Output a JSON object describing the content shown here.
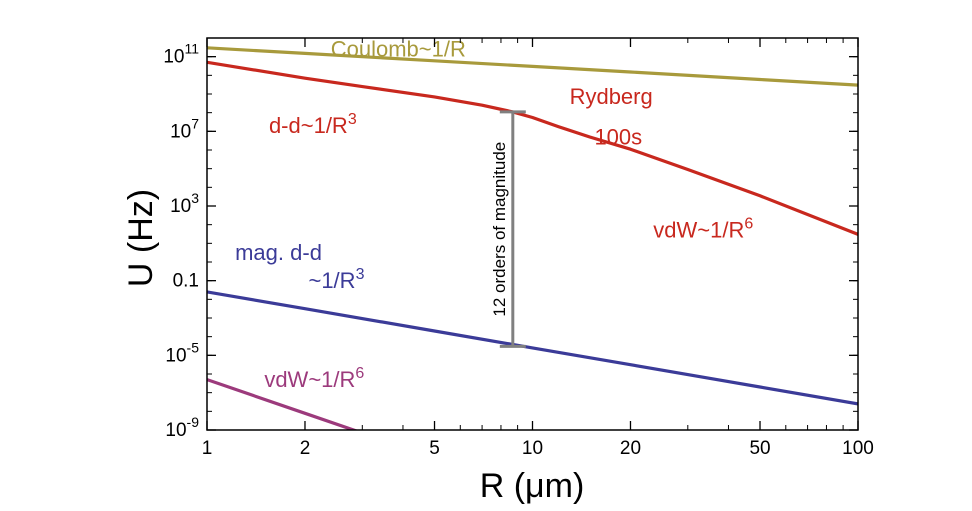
{
  "chart_data": {
    "type": "line",
    "xlabel": "R (μm)",
    "ylabel": "U (Hz)",
    "xscale": "log",
    "yscale": "log",
    "xlim": [
      1,
      100
    ],
    "ylim": [
      1e-09,
      1000000000000.0
    ],
    "x_ticks": [
      {
        "value": 1,
        "label": "1"
      },
      {
        "value": 2,
        "label": "2"
      },
      {
        "value": 5,
        "label": "5"
      },
      {
        "value": 10,
        "label": "10"
      },
      {
        "value": 20,
        "label": "20"
      },
      {
        "value": 50,
        "label": "50"
      },
      {
        "value": 100,
        "label": "100"
      }
    ],
    "y_ticks": [
      {
        "value": 1e-09,
        "base": "10",
        "exp": "-9"
      },
      {
        "value": 1e-05,
        "base": "10",
        "exp": "-5"
      },
      {
        "value": 0.1,
        "base": "0.1",
        "exp": ""
      },
      {
        "value": 1000.0,
        "base": "10",
        "exp": "3"
      },
      {
        "value": 10000000.0,
        "base": "10",
        "exp": "7"
      },
      {
        "value": 100000000000.0,
        "base": "10",
        "exp": "11"
      }
    ],
    "grid": false,
    "legend": "none",
    "series": [
      {
        "key": "coulomb",
        "color": "#a89a3c",
        "x": [
          1,
          2,
          5,
          10,
          20,
          50,
          100
        ],
        "y": [
          300000000000.0,
          150000000000.0,
          60000000000.0,
          30000000000.0,
          15000000000.0,
          6000000000.0,
          3000000000.0
        ]
      },
      {
        "key": "rydberg",
        "color": "#c8281e",
        "x": [
          1,
          2,
          3,
          5,
          7,
          8.7,
          10,
          12,
          15,
          20,
          30,
          50,
          100
        ],
        "y": [
          50000000000.0,
          7000000000.0,
          2500000000.0,
          700000000.0,
          250000000.0,
          110000000.0,
          55000000.0,
          18000000.0,
          5000000.0,
          1100000.0,
          90000.0,
          3500.0,
          30.0
        ]
      },
      {
        "key": "magnetic-dd",
        "color": "#3b3b98",
        "x": [
          1,
          2,
          5,
          10,
          20,
          50,
          100
        ],
        "y": [
          0.025,
          0.00315,
          0.0002,
          2.5e-05,
          3.15e-06,
          2e-07,
          2.5e-08
        ]
      },
      {
        "key": "magnetic-vdw",
        "color": "#9c3a7c",
        "x": [
          1,
          2,
          3
        ],
        "y": [
          5e-07,
          7.8e-09,
          6.9e-10
        ]
      }
    ],
    "annotations": [
      {
        "key": "coulomb",
        "parts": [
          {
            "t": "Coulomb~1/R"
          }
        ],
        "color": "#a89a3c",
        "x": 2.4,
        "y": 100000000000.0
      },
      {
        "key": "dd",
        "parts": [
          {
            "t": "d-d~1/R"
          },
          {
            "t": "3",
            "sup": true
          }
        ],
        "color": "#c8281e",
        "x": 1.55,
        "y": 8000000.0
      },
      {
        "key": "rydberg",
        "parts": [
          {
            "t": "Rydberg"
          }
        ],
        "color": "#c8281e",
        "x": 13.0,
        "y": 300000000.0
      },
      {
        "key": "100s",
        "parts": [
          {
            "t": "100s"
          }
        ],
        "color": "#c8281e",
        "x": 15.5,
        "y": 2000000.0
      },
      {
        "key": "vdw-ryd",
        "parts": [
          {
            "t": "vdW~1/R"
          },
          {
            "t": "6",
            "sup": true
          }
        ],
        "color": "#c8281e",
        "x": 23.5,
        "y": 20.0
      },
      {
        "key": "mag-dd",
        "parts": [
          {
            "t": "mag. d-d"
          }
        ],
        "color": "#3b3b98",
        "x": 1.22,
        "y": 1.3
      },
      {
        "key": "mag-dd-2",
        "parts": [
          {
            "t": "~1/R"
          },
          {
            "t": "3",
            "sup": true
          }
        ],
        "color": "#3b3b98",
        "x": 2.05,
        "y": 0.04
      },
      {
        "key": "vdw-mag",
        "parts": [
          {
            "t": "vdW~1/R"
          },
          {
            "t": "6",
            "sup": true
          }
        ],
        "color": "#9c3a7c",
        "x": 1.5,
        "y": 2e-07
      }
    ],
    "magnitude_bar": {
      "x": 8.7,
      "y_top": 110000000.0,
      "y_bottom": 3e-05,
      "label": "12 orders of magnitude",
      "color": "#808080"
    }
  }
}
